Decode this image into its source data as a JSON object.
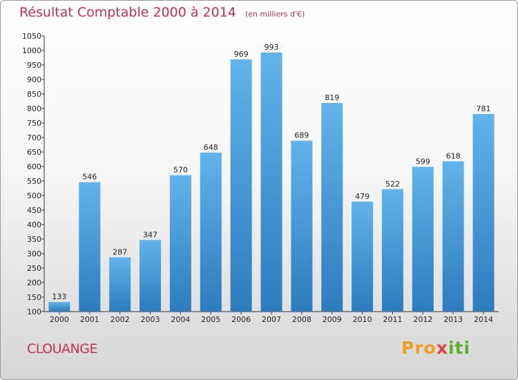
{
  "title": {
    "main": "Résultat Comptable 2000 à 2014",
    "unit": "(en milliers d'€)"
  },
  "city": "CLOUANGE",
  "logo": {
    "p1": "Pro",
    "p2": "x",
    "p3": "iti"
  },
  "chart_data": {
    "type": "bar",
    "title": "Résultat Comptable 2000 à 2014",
    "subtitle": "(en milliers d'€)",
    "categories": [
      "2000",
      "2001",
      "2002",
      "2003",
      "2004",
      "2005",
      "2006",
      "2007",
      "2008",
      "2009",
      "2010",
      "2011",
      "2012",
      "2013",
      "2014"
    ],
    "values": [
      133,
      546,
      287,
      347,
      570,
      648,
      969,
      993,
      689,
      819,
      479,
      522,
      599,
      618,
      781
    ],
    "ylim": [
      100,
      1050
    ],
    "yticks": [
      100,
      150,
      200,
      250,
      300,
      350,
      400,
      450,
      500,
      550,
      600,
      650,
      700,
      750,
      800,
      850,
      900,
      950,
      1000,
      1050
    ],
    "grid": false,
    "bar_color": "#3f95d6",
    "bar_color_light": "#62b3ea",
    "bar_color_dark": "#2c7cbf"
  }
}
